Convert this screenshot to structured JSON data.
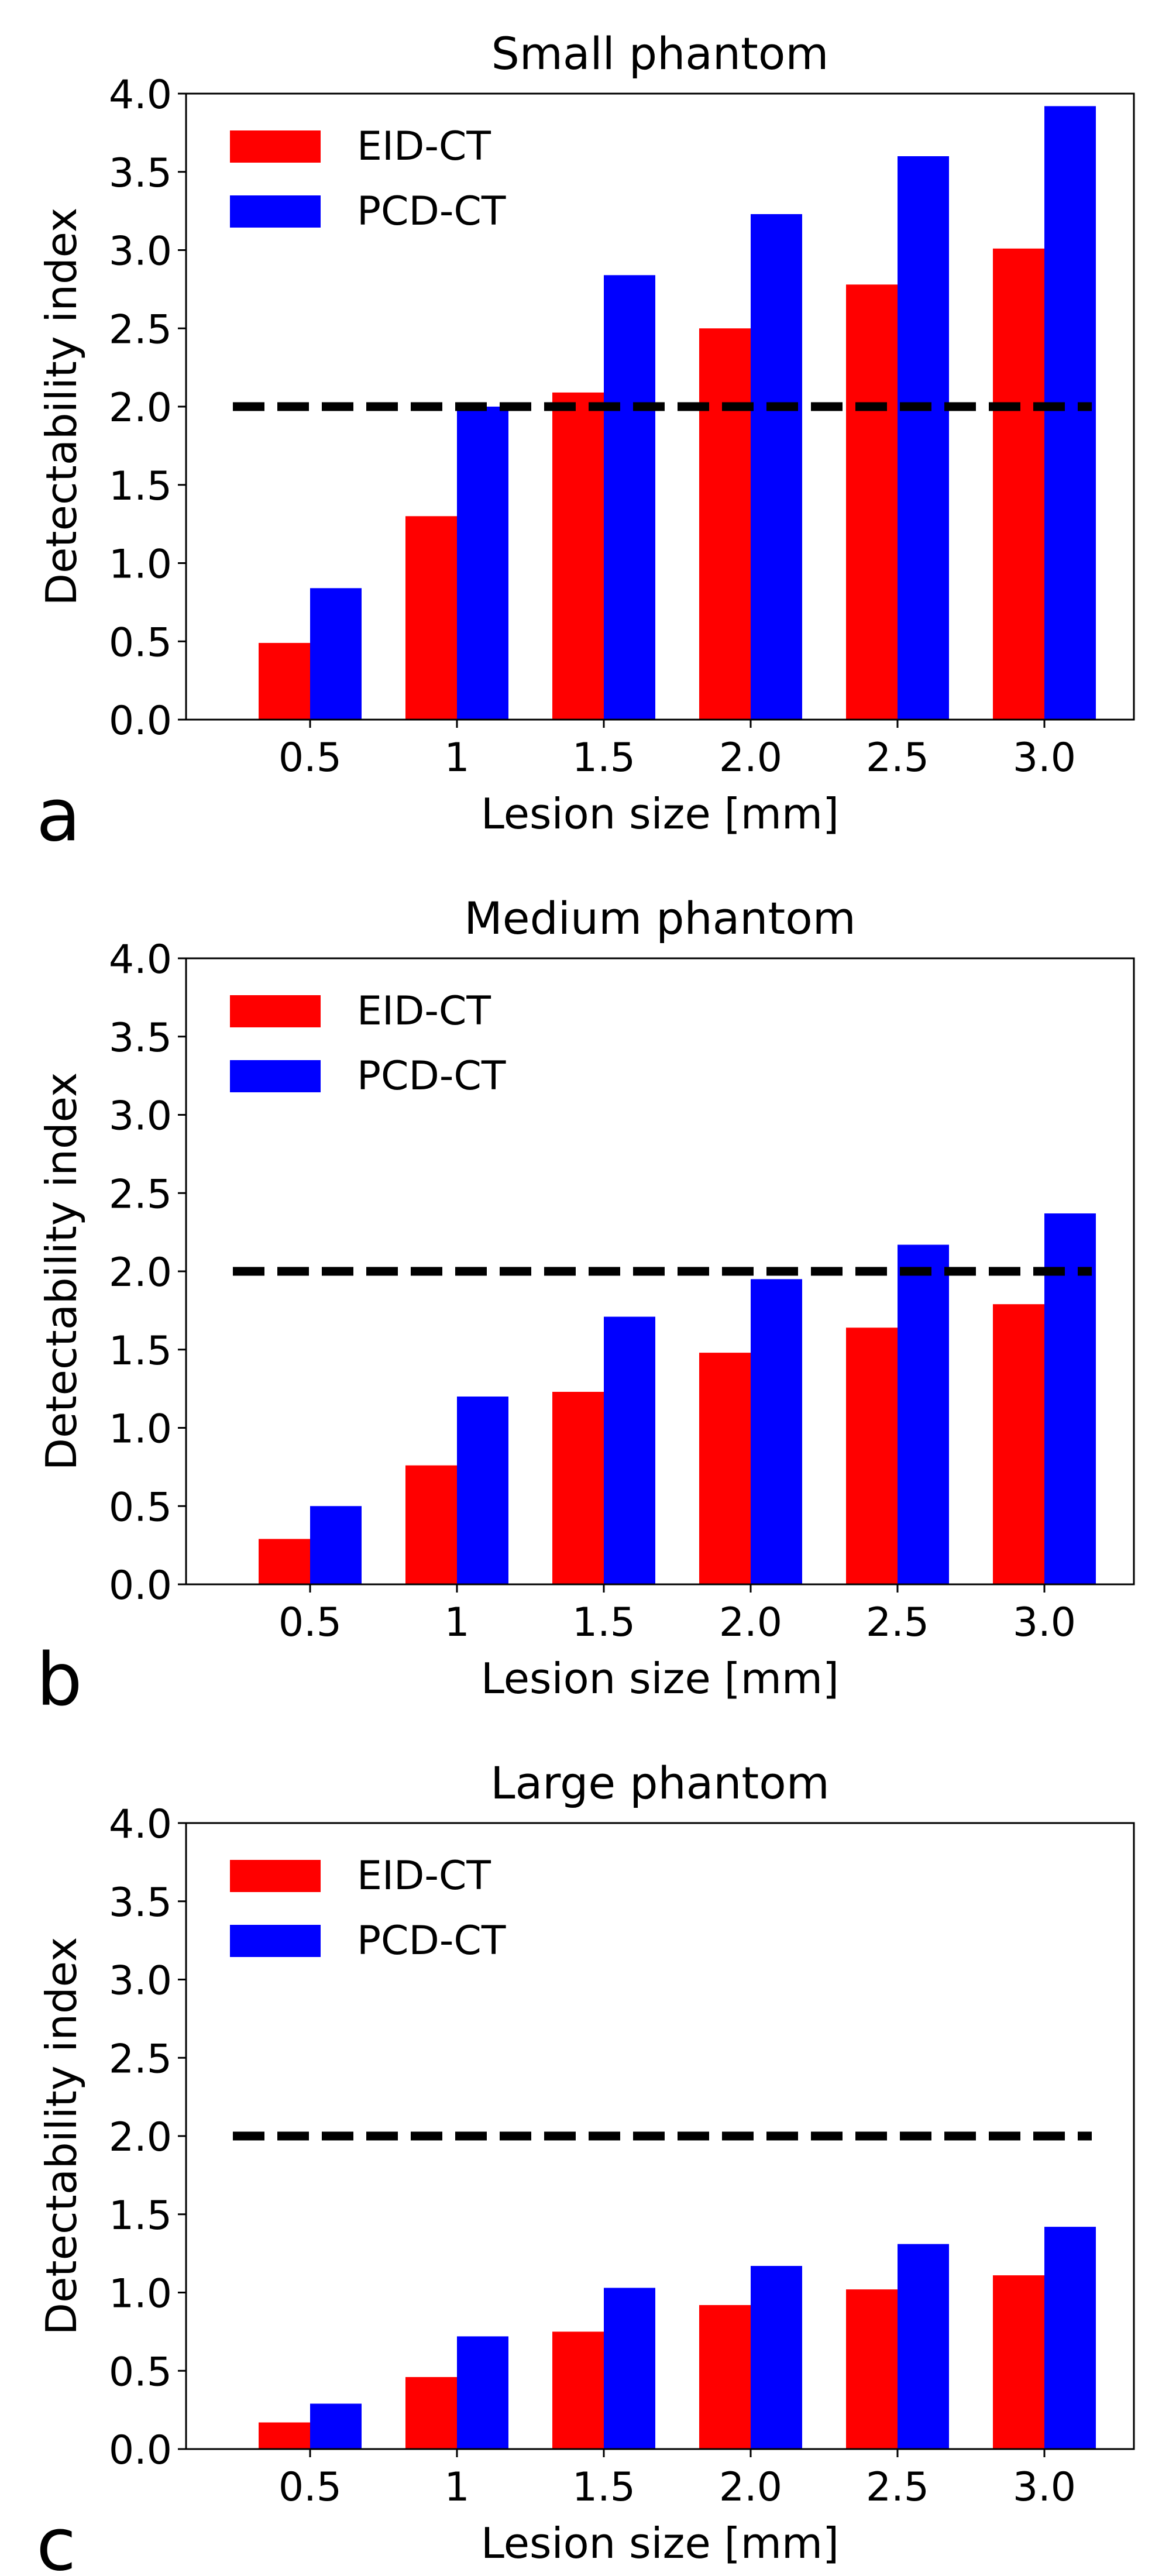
{
  "chart_data": [
    {
      "type": "bar",
      "panel_label": "a",
      "title": "Small phantom",
      "xlabel": "Lesion size [mm]",
      "ylabel": "Detectability index",
      "categories": [
        "0.5",
        "1",
        "1.5",
        "2.0",
        "2.5",
        "3.0"
      ],
      "series": [
        {
          "name": "EID-CT",
          "color": "#ff0000",
          "values": [
            0.49,
            1.3,
            2.09,
            2.5,
            2.78,
            3.01
          ]
        },
        {
          "name": "PCD-CT",
          "color": "#0000ff",
          "values": [
            0.84,
            2.0,
            2.84,
            3.23,
            3.6,
            3.92
          ]
        }
      ],
      "ylim": [
        0,
        4.0
      ],
      "yticks": [
        "0.0",
        "0.5",
        "1.0",
        "1.5",
        "2.0",
        "2.5",
        "3.0",
        "3.5",
        "4.0"
      ],
      "threshold": 2.0,
      "legend": "top-left",
      "grid": false
    },
    {
      "type": "bar",
      "panel_label": "b",
      "title": "Medium phantom",
      "xlabel": "Lesion size [mm]",
      "ylabel": "Detectability index",
      "categories": [
        "0.5",
        "1",
        "1.5",
        "2.0",
        "2.5",
        "3.0"
      ],
      "series": [
        {
          "name": "EID-CT",
          "color": "#ff0000",
          "values": [
            0.29,
            0.76,
            1.23,
            1.48,
            1.64,
            1.79
          ]
        },
        {
          "name": "PCD-CT",
          "color": "#0000ff",
          "values": [
            0.5,
            1.2,
            1.71,
            1.95,
            2.17,
            2.37
          ]
        }
      ],
      "ylim": [
        0,
        4.0
      ],
      "yticks": [
        "0.0",
        "0.5",
        "1.0",
        "1.5",
        "2.0",
        "2.5",
        "3.0",
        "3.5",
        "4.0"
      ],
      "threshold": 2.0,
      "legend": "top-left",
      "grid": false
    },
    {
      "type": "bar",
      "panel_label": "c",
      "title": "Large phantom",
      "xlabel": "Lesion size [mm]",
      "ylabel": "Detectability index",
      "categories": [
        "0.5",
        "1",
        "1.5",
        "2.0",
        "2.5",
        "3.0"
      ],
      "series": [
        {
          "name": "EID-CT",
          "color": "#ff0000",
          "values": [
            0.17,
            0.46,
            0.75,
            0.92,
            1.02,
            1.11
          ]
        },
        {
          "name": "PCD-CT",
          "color": "#0000ff",
          "values": [
            0.29,
            0.72,
            1.03,
            1.17,
            1.31,
            1.42
          ]
        }
      ],
      "ylim": [
        0,
        4.0
      ],
      "yticks": [
        "0.0",
        "0.5",
        "1.0",
        "1.5",
        "2.0",
        "2.5",
        "3.0",
        "3.5",
        "4.0"
      ],
      "threshold": 2.0,
      "legend": "top-left",
      "grid": false
    }
  ]
}
